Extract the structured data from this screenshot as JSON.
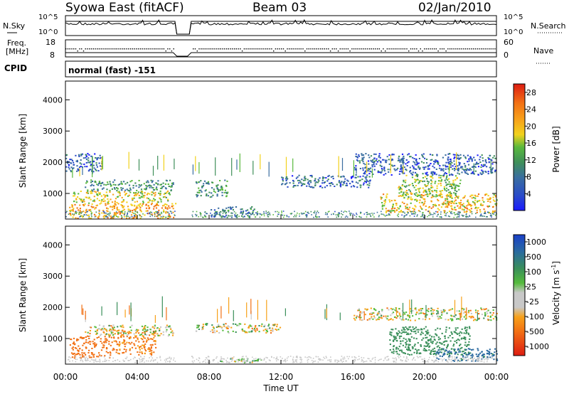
{
  "header": {
    "station": "Syowa East (fitACF)",
    "beam": "Beam 03",
    "date": "02/Jan/2010"
  },
  "left_labels": {
    "nsky": "N.Sky",
    "freq_line1": "Freq.",
    "freq_line2": "[MHz]",
    "cpid": "CPID"
  },
  "right_labels": {
    "nsearch": "N.Search",
    "nave": "Nave"
  },
  "nsky_ticks": [
    "10^5",
    "10^0"
  ],
  "nsearch_ticks": [
    "10^5",
    "10^0"
  ],
  "freq_ticks": [
    "18",
    "8"
  ],
  "nave_ticks": [
    "60",
    "0"
  ],
  "cpid_text": "normal (fast) -151",
  "panels": {
    "power": {
      "ylabel": "Slant Range [km]",
      "cbar_label": "Power [dB]"
    },
    "velocity": {
      "ylabel": "Slant Range [km]",
      "cbar_label_main": "Velocity [m s",
      "cbar_label_sup": "-1",
      "cbar_label_end": "]"
    }
  },
  "xlabel": "Time UT",
  "chart_data": [
    {
      "type": "heatmap",
      "name": "power",
      "title": "",
      "xlabel": "Time UT",
      "ylabel": "Slant Range [km]",
      "x_ticks": [
        "00:00",
        "04:00",
        "08:00",
        "12:00",
        "16:00",
        "20:00",
        "00:00"
      ],
      "xlim_hours": [
        0,
        24
      ],
      "y_ticks": [
        1000,
        2000,
        3000,
        4000
      ],
      "ylim": [
        180,
        4600
      ],
      "colorbar": {
        "label": "Power [dB]",
        "ticks": [
          "4",
          "8",
          "12",
          "16",
          "20",
          "24",
          "28"
        ],
        "range": [
          0,
          30
        ],
        "colors": [
          "#1a1aff",
          "#2a4cc8",
          "#3a6ea0",
          "#3f8f5a",
          "#59b83c",
          "#f2d21c",
          "#f7a11a",
          "#f27014",
          "#e93a12",
          "#dd1c12"
        ]
      },
      "data_gap_hours": [
        6.1,
        7.0
      ],
      "data_blobs": [
        {
          "t": [
            0.2,
            6.1
          ],
          "r": [
            220,
            700
          ],
          "level": 20
        },
        {
          "t": [
            0.4,
            5.8
          ],
          "r": [
            700,
            1100
          ],
          "level": 16
        },
        {
          "t": [
            1.0,
            6.0
          ],
          "r": [
            1100,
            1450
          ],
          "level": 10
        },
        {
          "t": [
            0.0,
            2.0
          ],
          "r": [
            1700,
            2300
          ],
          "level": 5
        },
        {
          "t": [
            7.2,
            9.0
          ],
          "r": [
            900,
            1450
          ],
          "level": 10
        },
        {
          "t": [
            8.0,
            10.5
          ],
          "r": [
            250,
            600
          ],
          "level": 8
        },
        {
          "t": [
            12.0,
            17.0
          ],
          "r": [
            1200,
            1600
          ],
          "level": 6
        },
        {
          "t": [
            17.5,
            24.0
          ],
          "r": [
            400,
            1000
          ],
          "level": 18
        },
        {
          "t": [
            18.5,
            22.0
          ],
          "r": [
            900,
            1600
          ],
          "level": 14
        },
        {
          "t": [
            16.0,
            24.0
          ],
          "r": [
            1600,
            2300
          ],
          "level": 5
        }
      ]
    },
    {
      "type": "heatmap",
      "name": "velocity",
      "title": "",
      "xlabel": "Time UT",
      "ylabel": "Slant Range [km]",
      "x_ticks": [
        "00:00",
        "04:00",
        "08:00",
        "12:00",
        "16:00",
        "20:00",
        "00:00"
      ],
      "xlim_hours": [
        0,
        24
      ],
      "y_ticks": [
        1000,
        2000,
        3000,
        4000
      ],
      "ylim": [
        180,
        4600
      ],
      "colorbar": {
        "label": "Velocity [m s-1]",
        "ticks": [
          "1000",
          "500",
          "100",
          "25",
          "-25",
          "-100",
          "-500",
          "-1000"
        ],
        "colors": [
          "#1a40c8",
          "#2a6aa0",
          "#3a8f5a",
          "#55bb3c",
          "#c8c8c8",
          "#f7a11a",
          "#f27014",
          "#e93a12",
          "#dd1c12"
        ]
      },
      "data_gap_hours": [
        6.1,
        7.0
      ],
      "data_blobs": [
        {
          "t": [
            0.2,
            2.5
          ],
          "r": [
            400,
            1100
          ],
          "level": -300
        },
        {
          "t": [
            2.5,
            5.0
          ],
          "r": [
            500,
            1300
          ],
          "level": -150
        },
        {
          "t": [
            1.0,
            6.0
          ],
          "r": [
            1100,
            1450
          ],
          "level": 0
        },
        {
          "t": [
            7.2,
            12.0
          ],
          "r": [
            1200,
            1500
          ],
          "level": 0
        },
        {
          "t": [
            8.5,
            11.0
          ],
          "r": [
            250,
            400
          ],
          "level": 80
        },
        {
          "t": [
            16.0,
            24.0
          ],
          "r": [
            1600,
            2000
          ],
          "level": 0
        },
        {
          "t": [
            18.0,
            22.5
          ],
          "r": [
            500,
            1400
          ],
          "level": 300
        },
        {
          "t": [
            20.5,
            24.0
          ],
          "r": [
            300,
            700
          ],
          "level": 600
        }
      ]
    }
  ]
}
